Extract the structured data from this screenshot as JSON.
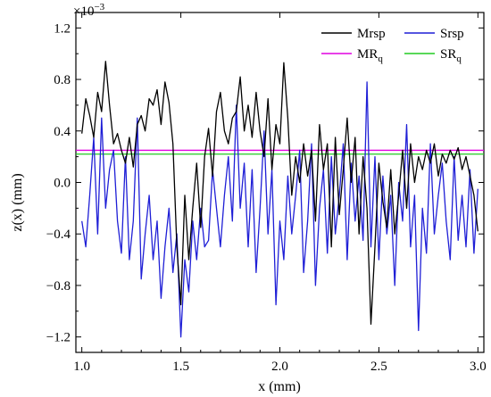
{
  "chart_data": {
    "type": "line",
    "xlabel": "x (mm)",
    "ylabel": "z(x) (mm)",
    "y_multiplier_label": "×10",
    "y_multiplier_exponent": "−3",
    "xlim": [
      0.97,
      3.03
    ],
    "ylim": [
      -1.32,
      1.32
    ],
    "x_ticks": [
      1.0,
      1.5,
      2.0,
      2.5,
      3.0
    ],
    "x_tick_labels": [
      "1.0",
      "1.5",
      "2.0",
      "2.5",
      "3.0"
    ],
    "y_ticks": [
      -1.2,
      -0.8,
      -0.4,
      0.0,
      0.4,
      0.8,
      1.2
    ],
    "y_tick_labels": [
      "−1.2",
      "−0.8",
      "−0.4",
      "0.0",
      "0.4",
      "0.8",
      "1.2"
    ],
    "grid": false,
    "legend_position": "top-right",
    "legend": [
      {
        "label": "Mrsp",
        "color": "#000000"
      },
      {
        "label": "Srsp",
        "color": "#1f1fd6"
      },
      {
        "label": "MR",
        "sub": "q",
        "color": "#e000e0"
      },
      {
        "label": "SR",
        "sub": "q",
        "color": "#22cc22"
      }
    ],
    "reference_lines": [
      {
        "name": "MRq",
        "y": 0.25,
        "color": "#e000e0"
      },
      {
        "name": "SRq",
        "y": 0.22,
        "color": "#22cc22"
      }
    ],
    "series": [
      {
        "name": "Mrsp",
        "color": "#000000",
        "x": [
          1.0,
          1.02,
          1.04,
          1.06,
          1.08,
          1.1,
          1.12,
          1.14,
          1.16,
          1.18,
          1.2,
          1.22,
          1.24,
          1.26,
          1.28,
          1.3,
          1.32,
          1.34,
          1.36,
          1.38,
          1.4,
          1.42,
          1.44,
          1.46,
          1.48,
          1.5,
          1.52,
          1.54,
          1.56,
          1.58,
          1.6,
          1.62,
          1.64,
          1.66,
          1.68,
          1.7,
          1.72,
          1.74,
          1.76,
          1.78,
          1.8,
          1.82,
          1.84,
          1.86,
          1.88,
          1.9,
          1.92,
          1.94,
          1.96,
          1.98,
          2.0,
          2.02,
          2.04,
          2.06,
          2.08,
          2.1,
          2.12,
          2.14,
          2.16,
          2.18,
          2.2,
          2.22,
          2.24,
          2.26,
          2.28,
          2.3,
          2.32,
          2.34,
          2.36,
          2.38,
          2.4,
          2.42,
          2.44,
          2.46,
          2.48,
          2.5,
          2.52,
          2.54,
          2.56,
          2.58,
          2.6,
          2.62,
          2.64,
          2.66,
          2.68,
          2.7,
          2.72,
          2.74,
          2.76,
          2.78,
          2.8,
          2.82,
          2.84,
          2.86,
          2.88,
          2.9,
          2.92,
          2.94,
          2.96,
          2.98,
          3.0
        ],
        "y": [
          0.38,
          0.65,
          0.52,
          0.35,
          0.7,
          0.55,
          0.94,
          0.6,
          0.3,
          0.38,
          0.25,
          0.15,
          0.35,
          0.12,
          0.45,
          0.52,
          0.4,
          0.65,
          0.6,
          0.72,
          0.45,
          0.78,
          0.62,
          0.3,
          -0.5,
          -0.95,
          -0.1,
          -0.6,
          -0.2,
          0.15,
          -0.35,
          0.2,
          0.42,
          0.05,
          0.55,
          0.7,
          0.4,
          0.3,
          0.5,
          0.55,
          0.82,
          0.4,
          0.6,
          0.35,
          0.7,
          0.4,
          0.2,
          0.65,
          0.1,
          0.45,
          0.3,
          0.93,
          0.5,
          -0.1,
          0.2,
          0.0,
          0.3,
          0.05,
          0.25,
          -0.3,
          0.45,
          0.1,
          0.3,
          -0.5,
          0.35,
          -0.25,
          0.1,
          0.5,
          0.0,
          0.35,
          -0.4,
          0.2,
          -0.2,
          -1.1,
          -0.5,
          0.15,
          -0.15,
          -0.35,
          0.1,
          -0.4,
          -0.1,
          0.25,
          -0.2,
          0.3,
          0.0,
          0.2,
          0.1,
          0.25,
          0.15,
          0.3,
          0.05,
          0.22,
          0.15,
          0.25,
          0.18,
          0.27,
          0.1,
          0.2,
          0.05,
          -0.1,
          -0.38
        ]
      },
      {
        "name": "Srsp",
        "color": "#1f1fd6",
        "x": [
          1.0,
          1.02,
          1.04,
          1.06,
          1.08,
          1.1,
          1.12,
          1.14,
          1.16,
          1.18,
          1.2,
          1.22,
          1.24,
          1.26,
          1.28,
          1.3,
          1.32,
          1.34,
          1.36,
          1.38,
          1.4,
          1.42,
          1.44,
          1.46,
          1.48,
          1.5,
          1.52,
          1.54,
          1.56,
          1.58,
          1.6,
          1.62,
          1.64,
          1.66,
          1.68,
          1.7,
          1.72,
          1.74,
          1.76,
          1.78,
          1.8,
          1.82,
          1.84,
          1.86,
          1.88,
          1.9,
          1.92,
          1.94,
          1.96,
          1.98,
          2.0,
          2.02,
          2.04,
          2.06,
          2.08,
          2.1,
          2.12,
          2.14,
          2.16,
          2.18,
          2.2,
          2.22,
          2.24,
          2.26,
          2.28,
          2.3,
          2.32,
          2.34,
          2.36,
          2.38,
          2.4,
          2.42,
          2.44,
          2.46,
          2.48,
          2.5,
          2.52,
          2.54,
          2.56,
          2.58,
          2.6,
          2.62,
          2.64,
          2.66,
          2.68,
          2.7,
          2.72,
          2.74,
          2.76,
          2.78,
          2.8,
          2.82,
          2.84,
          2.86,
          2.88,
          2.9,
          2.92,
          2.94,
          2.96,
          2.98,
          3.0
        ],
        "y": [
          -0.3,
          -0.5,
          -0.1,
          0.35,
          -0.4,
          0.5,
          -0.2,
          0.1,
          0.25,
          -0.3,
          -0.55,
          0.2,
          -0.6,
          -0.3,
          0.5,
          -0.75,
          -0.4,
          -0.1,
          -0.6,
          -0.3,
          -0.9,
          -0.5,
          -0.2,
          -0.7,
          -0.4,
          -1.2,
          -0.6,
          -0.85,
          -0.3,
          -0.6,
          -0.2,
          -0.5,
          -0.45,
          0.1,
          -0.2,
          -0.5,
          -0.1,
          0.2,
          -0.3,
          0.6,
          -0.2,
          0.15,
          -0.5,
          0.1,
          -0.7,
          -0.2,
          0.4,
          -0.4,
          0.1,
          -0.95,
          -0.3,
          -0.6,
          0.05,
          -0.4,
          -0.1,
          0.25,
          -0.7,
          -0.3,
          0.3,
          -0.8,
          -0.2,
          0.1,
          -0.55,
          0.2,
          -0.4,
          -0.1,
          0.3,
          -0.6,
          0.15,
          -0.3,
          0.05,
          -0.45,
          0.78,
          -0.5,
          0.2,
          -0.6,
          0.05,
          -0.4,
          -0.1,
          -0.8,
          0.0,
          -0.3,
          0.45,
          -0.5,
          -0.1,
          -1.15,
          -0.2,
          -0.55,
          0.3,
          -0.4,
          -0.1,
          0.15,
          -0.3,
          -0.6,
          0.2,
          -0.45,
          -0.1,
          -0.5,
          0.1,
          -0.55,
          -0.05
        ]
      }
    ]
  }
}
